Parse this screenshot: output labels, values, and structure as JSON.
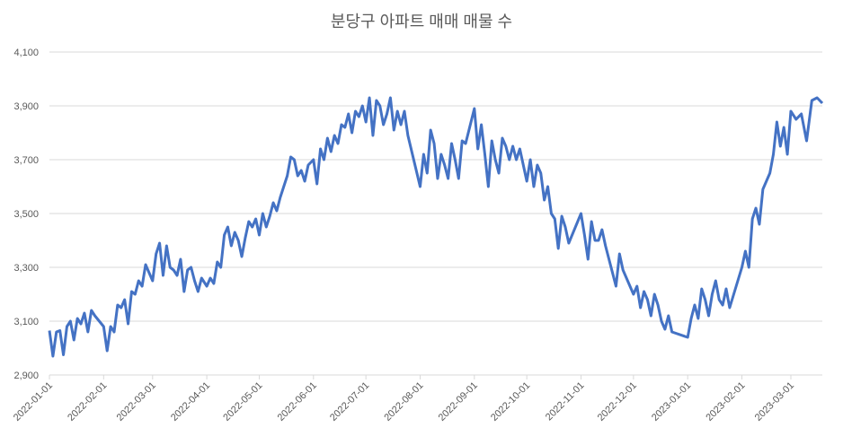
{
  "chart_data": {
    "type": "line",
    "title": "분당구 아파트 매매 매물 수",
    "xlim": [
      "2022-01-01",
      "2023-03-19"
    ],
    "xticks": [
      "2022-01-01",
      "2022-02-01",
      "2022-03-01",
      "2022-04-01",
      "2022-05-01",
      "2022-06-01",
      "2022-07-01",
      "2022-08-01",
      "2022-09-01",
      "2022-10-01",
      "2022-11-01",
      "2022-12-01",
      "2023-01-01",
      "2023-02-01",
      "2023-03-01"
    ],
    "ylim": [
      2900,
      4100
    ],
    "yticks": [
      {
        "value": 2900,
        "label": "2,900"
      },
      {
        "value": 3100,
        "label": "3,100"
      },
      {
        "value": 3300,
        "label": "3,300"
      },
      {
        "value": 3500,
        "label": "3,500"
      },
      {
        "value": 3700,
        "label": "3,700"
      },
      {
        "value": 3900,
        "label": "3,900"
      },
      {
        "value": 4100,
        "label": "4,100"
      }
    ],
    "grid": true,
    "x": [
      "2022-01-01",
      "2022-01-03",
      "2022-01-05",
      "2022-01-07",
      "2022-01-09",
      "2022-01-11",
      "2022-01-13",
      "2022-01-15",
      "2022-01-17",
      "2022-01-19",
      "2022-01-21",
      "2022-01-23",
      "2022-01-25",
      "2022-01-27",
      "2022-02-01",
      "2022-02-03",
      "2022-02-05",
      "2022-02-07",
      "2022-02-09",
      "2022-02-11",
      "2022-02-13",
      "2022-02-15",
      "2022-02-17",
      "2022-02-19",
      "2022-02-21",
      "2022-02-23",
      "2022-02-25",
      "2022-02-27",
      "2022-03-01",
      "2022-03-03",
      "2022-03-05",
      "2022-03-07",
      "2022-03-09",
      "2022-03-11",
      "2022-03-13",
      "2022-03-15",
      "2022-03-17",
      "2022-03-19",
      "2022-03-21",
      "2022-03-23",
      "2022-03-25",
      "2022-03-27",
      "2022-03-29",
      "2022-04-01",
      "2022-04-03",
      "2022-04-05",
      "2022-04-07",
      "2022-04-09",
      "2022-04-11",
      "2022-04-13",
      "2022-04-15",
      "2022-04-17",
      "2022-04-19",
      "2022-04-21",
      "2022-04-23",
      "2022-04-25",
      "2022-04-27",
      "2022-04-29",
      "2022-05-01",
      "2022-05-03",
      "2022-05-05",
      "2022-05-07",
      "2022-05-09",
      "2022-05-11",
      "2022-05-13",
      "2022-05-15",
      "2022-05-17",
      "2022-05-19",
      "2022-05-21",
      "2022-05-23",
      "2022-05-25",
      "2022-05-27",
      "2022-05-29",
      "2022-06-01",
      "2022-06-03",
      "2022-06-05",
      "2022-06-07",
      "2022-06-09",
      "2022-06-11",
      "2022-06-13",
      "2022-06-15",
      "2022-06-17",
      "2022-06-19",
      "2022-06-21",
      "2022-06-23",
      "2022-06-25",
      "2022-06-27",
      "2022-06-29",
      "2022-07-01",
      "2022-07-03",
      "2022-07-05",
      "2022-07-07",
      "2022-07-09",
      "2022-07-11",
      "2022-07-13",
      "2022-07-15",
      "2022-07-17",
      "2022-07-19",
      "2022-07-21",
      "2022-07-23",
      "2022-07-25",
      "2022-08-01",
      "2022-08-03",
      "2022-08-05",
      "2022-08-07",
      "2022-08-09",
      "2022-08-11",
      "2022-08-13",
      "2022-08-15",
      "2022-08-17",
      "2022-08-19",
      "2022-08-21",
      "2022-08-23",
      "2022-08-25",
      "2022-08-27",
      "2022-09-01",
      "2022-09-03",
      "2022-09-05",
      "2022-09-07",
      "2022-09-09",
      "2022-09-11",
      "2022-09-13",
      "2022-09-15",
      "2022-09-17",
      "2022-09-19",
      "2022-09-21",
      "2022-09-23",
      "2022-09-25",
      "2022-09-27",
      "2022-10-01",
      "2022-10-03",
      "2022-10-05",
      "2022-10-07",
      "2022-10-09",
      "2022-10-11",
      "2022-10-13",
      "2022-10-15",
      "2022-10-17",
      "2022-10-19",
      "2022-10-21",
      "2022-10-23",
      "2022-10-25",
      "2022-11-01",
      "2022-11-03",
      "2022-11-05",
      "2022-11-07",
      "2022-11-09",
      "2022-11-11",
      "2022-11-13",
      "2022-11-15",
      "2022-11-17",
      "2022-11-19",
      "2022-11-21",
      "2022-11-23",
      "2022-11-25",
      "2022-12-01",
      "2022-12-03",
      "2022-12-05",
      "2022-12-07",
      "2022-12-09",
      "2022-12-11",
      "2022-12-13",
      "2022-12-15",
      "2022-12-17",
      "2022-12-19",
      "2022-12-21",
      "2022-12-23",
      "2023-01-01",
      "2023-01-03",
      "2023-01-05",
      "2023-01-07",
      "2023-01-09",
      "2023-01-11",
      "2023-01-13",
      "2023-01-15",
      "2023-01-17",
      "2023-01-19",
      "2023-01-21",
      "2023-01-23",
      "2023-01-25",
      "2023-02-01",
      "2023-02-03",
      "2023-02-05",
      "2023-02-07",
      "2023-02-09",
      "2023-02-11",
      "2023-02-13",
      "2023-02-15",
      "2023-02-17",
      "2023-02-19",
      "2023-02-21",
      "2023-02-23",
      "2023-02-25",
      "2023-02-27",
      "2023-03-01",
      "2023-03-04",
      "2023-03-07",
      "2023-03-10",
      "2023-03-13",
      "2023-03-16",
      "2023-03-19"
    ],
    "series": [
      {
        "color": "#4472c4",
        "values": [
          3065,
          2970,
          3060,
          3065,
          2975,
          3080,
          3100,
          3030,
          3110,
          3090,
          3130,
          3060,
          3140,
          3120,
          3080,
          2990,
          3080,
          3060,
          3160,
          3150,
          3180,
          3090,
          3210,
          3200,
          3250,
          3230,
          3310,
          3280,
          3250,
          3350,
          3390,
          3270,
          3380,
          3300,
          3290,
          3270,
          3330,
          3210,
          3290,
          3300,
          3250,
          3210,
          3260,
          3230,
          3260,
          3240,
          3320,
          3300,
          3420,
          3450,
          3380,
          3430,
          3400,
          3340,
          3410,
          3470,
          3450,
          3480,
          3420,
          3500,
          3450,
          3490,
          3540,
          3510,
          3560,
          3600,
          3640,
          3710,
          3700,
          3640,
          3660,
          3620,
          3680,
          3700,
          3610,
          3740,
          3700,
          3780,
          3730,
          3790,
          3760,
          3830,
          3820,
          3870,
          3800,
          3880,
          3860,
          3900,
          3840,
          3930,
          3790,
          3920,
          3900,
          3830,
          3870,
          3930,
          3810,
          3880,
          3830,
          3880,
          3790,
          3600,
          3720,
          3650,
          3810,
          3760,
          3630,
          3720,
          3680,
          3630,
          3760,
          3700,
          3630,
          3770,
          3760,
          3890,
          3740,
          3830,
          3720,
          3600,
          3770,
          3700,
          3650,
          3780,
          3750,
          3700,
          3750,
          3700,
          3740,
          3620,
          3700,
          3600,
          3680,
          3650,
          3550,
          3600,
          3500,
          3480,
          3370,
          3490,
          3450,
          3390,
          3500,
          3420,
          3330,
          3470,
          3400,
          3400,
          3440,
          3380,
          3330,
          3280,
          3230,
          3350,
          3290,
          3200,
          3230,
          3150,
          3210,
          3180,
          3120,
          3200,
          3160,
          3100,
          3070,
          3120,
          3060,
          3040,
          3110,
          3160,
          3110,
          3220,
          3180,
          3120,
          3200,
          3250,
          3180,
          3160,
          3220,
          3150,
          3300,
          3360,
          3300,
          3480,
          3520,
          3460,
          3590,
          3620,
          3650,
          3720,
          3840,
          3750,
          3820,
          3720,
          3880,
          3850,
          3870,
          3770,
          3920,
          3930,
          3910
        ]
      }
    ]
  }
}
